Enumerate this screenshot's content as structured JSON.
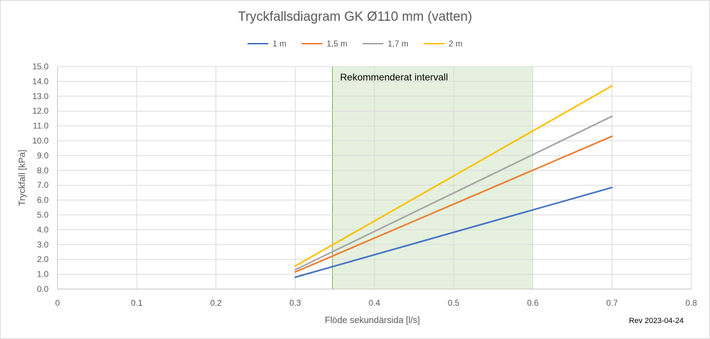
{
  "chart_data": {
    "type": "line",
    "title": "Tryckfallsdiagram GK Ø110 mm (vatten)",
    "xlabel": "Flöde sekundärsida [l/s]",
    "ylabel": "Tryckfall [kPa]",
    "xlim": [
      0,
      0.8
    ],
    "ylim": [
      0,
      15
    ],
    "x_ticks": [
      "0",
      "0.1",
      "0.2",
      "0.3",
      "0.4",
      "0.5",
      "0.6",
      "0.7",
      "0.8"
    ],
    "y_ticks": [
      "0.0",
      "1.0",
      "2.0",
      "3.0",
      "4.0",
      "5.0",
      "6.0",
      "7.0",
      "8.0",
      "9.0",
      "10.0",
      "11.0",
      "12.0",
      "13.0",
      "14.0",
      "15.0"
    ],
    "grid": true,
    "legend_position": "top",
    "series": [
      {
        "name": "1 m",
        "color": "#4472c4",
        "points": [
          [
            0.3,
            0.8
          ],
          [
            0.7,
            6.85
          ]
        ]
      },
      {
        "name": "1,5 m",
        "color": "#ed7d31",
        "points": [
          [
            0.3,
            1.15
          ],
          [
            0.7,
            10.3
          ]
        ]
      },
      {
        "name": "1,7 m",
        "color": "#a5a5a5",
        "points": [
          [
            0.3,
            1.3
          ],
          [
            0.7,
            11.65
          ]
        ]
      },
      {
        "name": "2 m",
        "color": "#ffc000",
        "points": [
          [
            0.3,
            1.55
          ],
          [
            0.7,
            13.7
          ]
        ]
      }
    ],
    "annotation": {
      "label": "Rekommenderat intervall",
      "x_range": [
        0.347,
        0.6
      ],
      "fill": "#e2efda",
      "stroke": "#70ad47"
    }
  },
  "footer": {
    "revision": "Rev 2023-04-24"
  }
}
